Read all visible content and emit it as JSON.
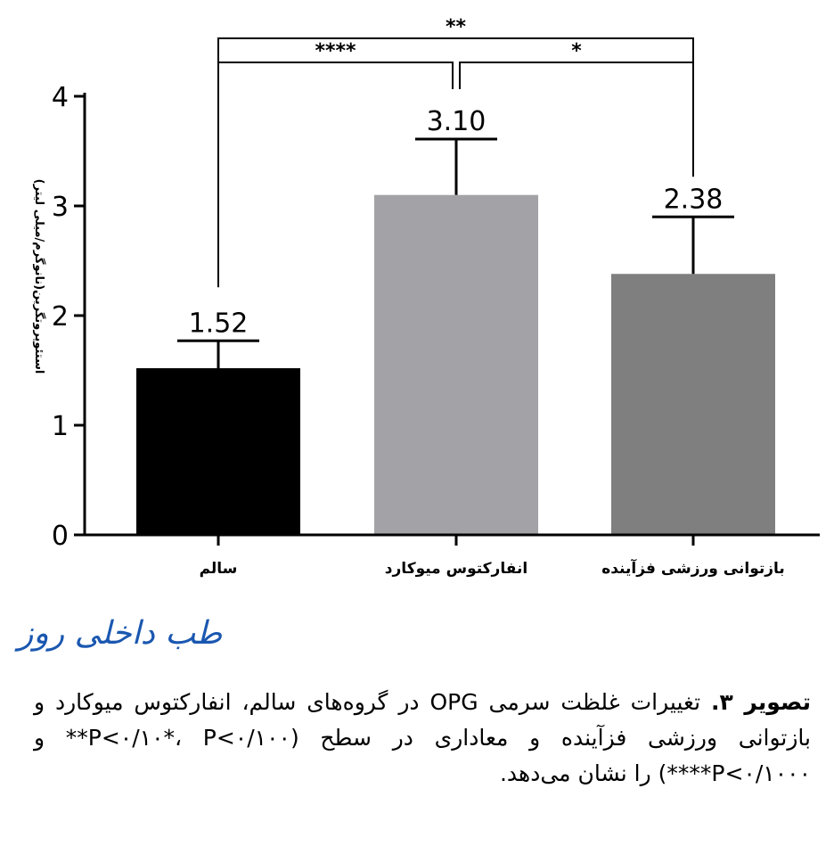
{
  "chart_data": {
    "type": "bar",
    "categories": [
      "سالم",
      "انفارکتوس میوکارد",
      "بازتوانی ورزشی فزآینده"
    ],
    "values": [
      1.52,
      3.1,
      2.38
    ],
    "value_labels": [
      "1.52",
      "3.10",
      "2.38"
    ],
    "error_upper": [
      1.77,
      3.61,
      2.9
    ],
    "bar_colors": [
      "#000000",
      "#a3a3a7",
      "#7f7f7f"
    ],
    "ylabel": "استئوپروتگرین(نانوگرم/میلی لیتر)",
    "xlabel": "",
    "ylim": [
      0,
      4
    ],
    "yticks": [
      "0",
      "1",
      "2",
      "3",
      "4"
    ],
    "significance": [
      {
        "from": 0,
        "to": 2,
        "label": "**"
      },
      {
        "from": 0,
        "to": 1,
        "label": "****"
      },
      {
        "from": 1,
        "to": 2,
        "label": "*"
      }
    ]
  },
  "brand": {
    "text": "طب داخلی روز"
  },
  "caption": {
    "label": "تصویر ۳.",
    "text": "تغییرات غلظت سرمی OPG در گروه‌های سالم، انفارکتوس میوکارد و بازتوانی ورزشی فزآینده و معاداری در سطح (P<۰/۱۰*، P<۰/۱۰۰** و P<۰/۱۰۰۰****) را نشان می‌دهد."
  }
}
